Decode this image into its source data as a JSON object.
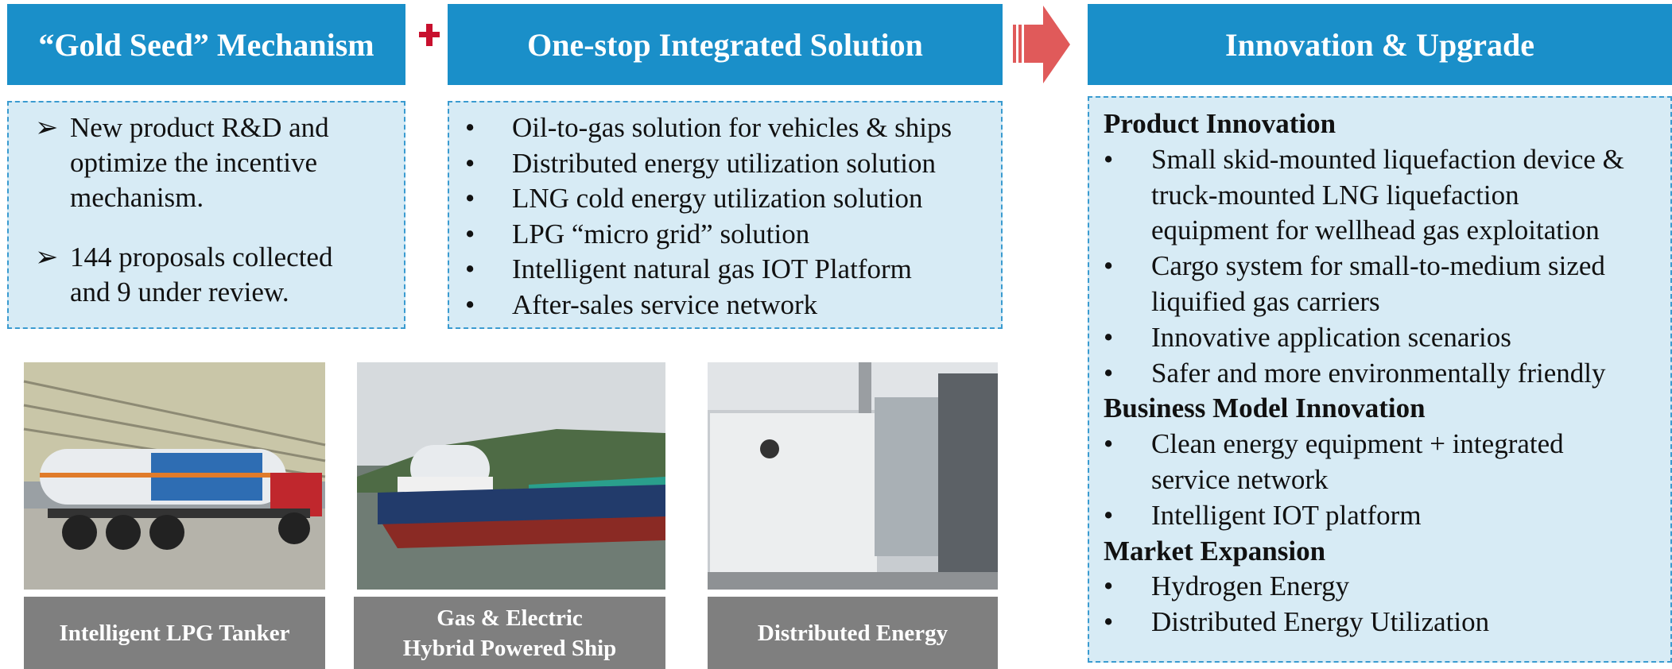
{
  "blocks": [
    {
      "title": "“Gold Seed” Mechanism",
      "marker": "➢",
      "items": [
        [
          "New product R&D and",
          "optimize the incentive",
          "mechanism."
        ],
        [
          "144 proposals collected",
          "and 9 under review."
        ]
      ]
    },
    {
      "title": "One-stop Integrated Solution",
      "marker": "•",
      "items": [
        [
          "Oil-to-gas solution for vehicles & ships"
        ],
        [
          "Distributed energy utilization solution"
        ],
        [
          "LNG cold energy utilization solution"
        ],
        [
          "LPG “micro grid” solution"
        ],
        [
          "Intelligent natural gas IOT Platform"
        ],
        [
          "After-sales service network"
        ]
      ]
    }
  ],
  "innovation": {
    "title": "Innovation & Upgrade",
    "marker": "•",
    "sections": [
      {
        "heading": "Product Innovation",
        "items": [
          [
            "Small skid-mounted liquefaction device &",
            "truck-mounted LNG liquefaction",
            "equipment for wellhead gas exploitation"
          ],
          [
            "Cargo system for small-to-medium sized",
            "liquified gas carriers"
          ],
          [
            "Innovative application scenarios"
          ],
          [
            "Safer and more environmentally friendly"
          ]
        ]
      },
      {
        "heading": "Business Model Innovation",
        "items": [
          [
            "Clean energy equipment + integrated",
            "service network"
          ],
          [
            "Intelligent IOT platform"
          ]
        ]
      },
      {
        "heading": "Market Expansion",
        "items": [
          [
            "Hydrogen Energy"
          ],
          [
            "Distributed Energy Utilization"
          ]
        ]
      }
    ]
  },
  "photos": [
    {
      "caption": [
        "Intelligent LPG Tanker"
      ]
    },
    {
      "caption": [
        "Gas & Electric",
        "Hybrid Powered Ship"
      ]
    },
    {
      "caption": [
        "Distributed Energy"
      ]
    }
  ]
}
